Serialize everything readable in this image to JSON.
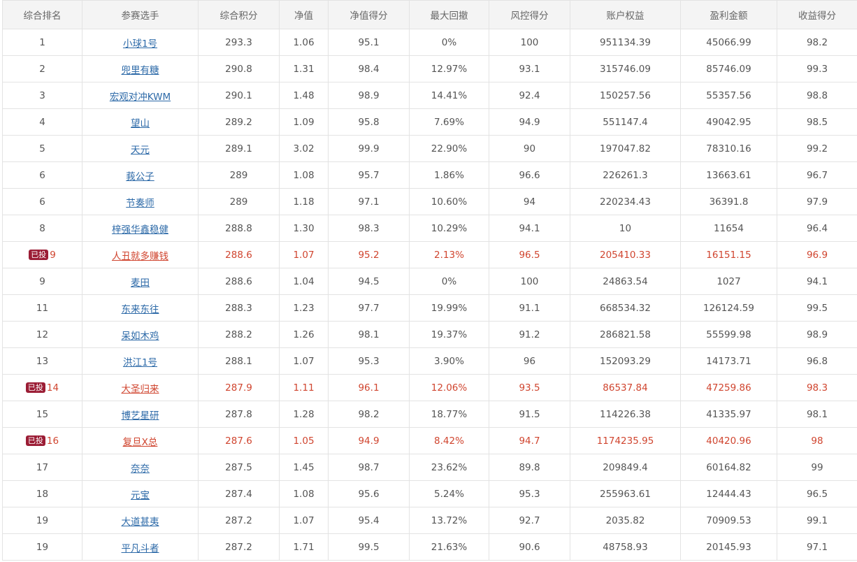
{
  "table": {
    "columns": [
      "综合排名",
      "参赛选手",
      "综合积分",
      "净值",
      "净值得分",
      "最大回撤",
      "风控得分",
      "账户权益",
      "盈利金额",
      "收益得分"
    ],
    "invested_badge": "已投",
    "rows": [
      {
        "rank": "1",
        "name": "小球1号",
        "score": "293.3",
        "nav": "1.06",
        "nav_score": "95.1",
        "max_dd": "0%",
        "risk_score": "100",
        "equity": "951134.39",
        "profit": "45066.99",
        "return_score": "98.2"
      },
      {
        "rank": "2",
        "name": "兜里有糖",
        "score": "290.8",
        "nav": "1.31",
        "nav_score": "98.4",
        "max_dd": "12.97%",
        "risk_score": "93.1",
        "equity": "315746.09",
        "profit": "85746.09",
        "return_score": "99.3"
      },
      {
        "rank": "3",
        "name": "宏观对冲KWM",
        "score": "290.1",
        "nav": "1.48",
        "nav_score": "98.9",
        "max_dd": "14.41%",
        "risk_score": "92.4",
        "equity": "150257.56",
        "profit": "55357.56",
        "return_score": "98.8"
      },
      {
        "rank": "4",
        "name": "望山",
        "score": "289.2",
        "nav": "1.09",
        "nav_score": "95.8",
        "max_dd": "7.69%",
        "risk_score": "94.9",
        "equity": "551147.4",
        "profit": "49042.95",
        "return_score": "98.5"
      },
      {
        "rank": "5",
        "name": "天元",
        "score": "289.1",
        "nav": "3.02",
        "nav_score": "99.9",
        "max_dd": "22.90%",
        "risk_score": "90",
        "equity": "197047.82",
        "profit": "78310.16",
        "return_score": "99.2"
      },
      {
        "rank": "6",
        "name": "莪公子",
        "score": "289",
        "nav": "1.08",
        "nav_score": "95.7",
        "max_dd": "1.86%",
        "risk_score": "96.6",
        "equity": "226261.3",
        "profit": "13663.61",
        "return_score": "96.7"
      },
      {
        "rank": "6",
        "name": "节奏师",
        "score": "289",
        "nav": "1.18",
        "nav_score": "97.1",
        "max_dd": "10.60%",
        "risk_score": "94",
        "equity": "220234.43",
        "profit": "36391.8",
        "return_score": "97.9"
      },
      {
        "rank": "8",
        "name": "梓强华鑫稳健",
        "score": "288.8",
        "nav": "1.30",
        "nav_score": "98.3",
        "max_dd": "10.29%",
        "risk_score": "94.1",
        "equity": "10",
        "profit": "11654",
        "return_score": "96.4"
      },
      {
        "rank": "9",
        "name": "人丑就多赚钱",
        "score": "288.6",
        "nav": "1.07",
        "nav_score": "95.2",
        "max_dd": "2.13%",
        "risk_score": "96.5",
        "equity": "205410.33",
        "profit": "16151.15",
        "return_score": "96.9",
        "invested": true
      },
      {
        "rank": "9",
        "name": "麦田",
        "score": "288.6",
        "nav": "1.04",
        "nav_score": "94.5",
        "max_dd": "0%",
        "risk_score": "100",
        "equity": "24863.54",
        "profit": "1027",
        "return_score": "94.1"
      },
      {
        "rank": "11",
        "name": "东来东往",
        "score": "288.3",
        "nav": "1.23",
        "nav_score": "97.7",
        "max_dd": "19.99%",
        "risk_score": "91.1",
        "equity": "668534.32",
        "profit": "126124.59",
        "return_score": "99.5"
      },
      {
        "rank": "12",
        "name": "呆如木鸡",
        "score": "288.2",
        "nav": "1.26",
        "nav_score": "98.1",
        "max_dd": "19.37%",
        "risk_score": "91.2",
        "equity": "286821.58",
        "profit": "55599.98",
        "return_score": "98.9"
      },
      {
        "rank": "13",
        "name": "洪江1号",
        "score": "288.1",
        "nav": "1.07",
        "nav_score": "95.3",
        "max_dd": "3.90%",
        "risk_score": "96",
        "equity": "152093.29",
        "profit": "14173.71",
        "return_score": "96.8"
      },
      {
        "rank": "14",
        "name": "大圣归来",
        "score": "287.9",
        "nav": "1.11",
        "nav_score": "96.1",
        "max_dd": "12.06%",
        "risk_score": "93.5",
        "equity": "86537.84",
        "profit": "47259.86",
        "return_score": "98.3",
        "invested": true
      },
      {
        "rank": "15",
        "name": "博艺星研",
        "score": "287.8",
        "nav": "1.28",
        "nav_score": "98.2",
        "max_dd": "18.77%",
        "risk_score": "91.5",
        "equity": "114226.38",
        "profit": "41335.97",
        "return_score": "98.1"
      },
      {
        "rank": "16",
        "name": "复旦X总",
        "score": "287.6",
        "nav": "1.05",
        "nav_score": "94.9",
        "max_dd": "8.42%",
        "risk_score": "94.7",
        "equity": "1174235.95",
        "profit": "40420.96",
        "return_score": "98",
        "invested": true
      },
      {
        "rank": "17",
        "name": "奈奈",
        "score": "287.5",
        "nav": "1.45",
        "nav_score": "98.7",
        "max_dd": "23.62%",
        "risk_score": "89.8",
        "equity": "209849.4",
        "profit": "60164.82",
        "return_score": "99"
      },
      {
        "rank": "18",
        "name": "元宝",
        "score": "287.4",
        "nav": "1.08",
        "nav_score": "95.6",
        "max_dd": "5.24%",
        "risk_score": "95.3",
        "equity": "255963.61",
        "profit": "12444.43",
        "return_score": "96.5"
      },
      {
        "rank": "19",
        "name": "大道甚夷",
        "score": "287.2",
        "nav": "1.07",
        "nav_score": "95.4",
        "max_dd": "13.72%",
        "risk_score": "92.7",
        "equity": "2035.82",
        "profit": "70909.53",
        "return_score": "99.1"
      },
      {
        "rank": "19",
        "name": "平凡斗者",
        "score": "287.2",
        "nav": "1.71",
        "nav_score": "99.5",
        "max_dd": "21.63%",
        "risk_score": "90.6",
        "equity": "48758.93",
        "profit": "20145.93",
        "return_score": "97.1"
      }
    ]
  },
  "colors": {
    "link": "#2d6aa8",
    "invested_text": "#d0452f",
    "badge_bg": "#9b1d35",
    "header_bg": "#f4f4f4"
  }
}
